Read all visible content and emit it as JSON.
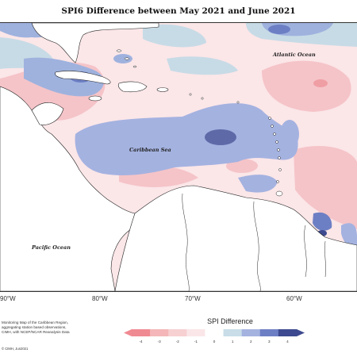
{
  "title": "SPI6 Difference between May 2021 and June 2021",
  "labels": {
    "atlantic": "Atlantic Ocean",
    "caribbean": "Caribbean Sea",
    "pacific": "Pacific Ocean"
  },
  "longitude_ticks": [
    "90°W",
    "80°W",
    "70°W",
    "60°W"
  ],
  "legend": {
    "title": "SPI Difference",
    "ticks": [
      "-4",
      "-3",
      "-2",
      "-1",
      "0",
      "1",
      "2",
      "3",
      "4"
    ],
    "colors": [
      "#f08a92",
      "#f4b6b8",
      "#f7d0d2",
      "#fae6e8",
      "#ffffff",
      "#c8dde8",
      "#a4b2e0",
      "#6d7fc4",
      "#3d4a8f"
    ]
  },
  "footnote": {
    "line1": "Monitoring Map of the Caribbean Region,",
    "line2": "aggregating station based observations,",
    "line3": "CIMH, with NCEP/NCAR Reanalysis Data",
    "credit": "© CIMH, Jun2021"
  }
}
